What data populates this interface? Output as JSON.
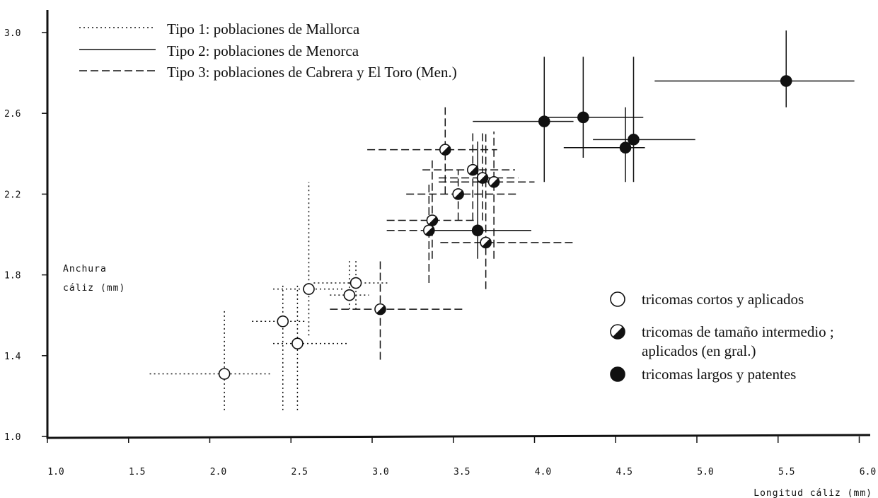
{
  "chart_data": {
    "type": "scatter",
    "title": "",
    "xlabel": "Longitud cáliz (mm)",
    "ylabel_lines": [
      "Anchura",
      "cáliz (mm)"
    ],
    "xlim": [
      1.0,
      6.0
    ],
    "ylim": [
      1.0,
      3.1
    ],
    "x_ticks": [
      "1.0",
      "1.5",
      "2.0",
      "2.5",
      "3.0",
      "3.5",
      "4.0",
      "4.5",
      "5.0",
      "5.5",
      "6.0"
    ],
    "y_ticks": [
      "1.0",
      "1.4",
      "1.8",
      "2.2",
      "2.6",
      "3.0"
    ],
    "grid": false,
    "line_legend": [
      {
        "style": "dotted",
        "label": "Tipo 1: poblaciones de Mallorca"
      },
      {
        "style": "solid",
        "label": "Tipo 2: poblaciones de Menorca"
      },
      {
        "style": "dashed",
        "label": "Tipo 3: poblaciones de Cabrera y El Toro (Men.)"
      }
    ],
    "marker_legend": [
      {
        "marker": "open",
        "lines": [
          "tricomas cortos y aplicados"
        ]
      },
      {
        "marker": "half",
        "lines": [
          "tricomas de tamaño intermedio ;",
          "aplicados (en gral.)"
        ]
      },
      {
        "marker": "filled",
        "lines": [
          "tricomas largos y patentes"
        ]
      }
    ],
    "series": [
      {
        "line": "dotted",
        "marker": "open",
        "points": [
          {
            "x": 2.09,
            "y": 1.31,
            "xerr": [
              1.63,
              2.38
            ],
            "yerr": [
              1.13,
              1.63
            ]
          },
          {
            "x": 2.45,
            "y": 1.57,
            "xerr": [
              2.26,
              2.6
            ],
            "yerr": [
              1.13,
              1.75
            ]
          },
          {
            "x": 2.54,
            "y": 1.46,
            "xerr": [
              2.39,
              2.86
            ],
            "yerr": [
              1.13,
              1.75
            ]
          },
          {
            "x": 2.61,
            "y": 1.73,
            "xerr": [
              2.39,
              2.83
            ],
            "yerr": [
              1.5,
              2.26
            ]
          },
          {
            "x": 2.86,
            "y": 1.7,
            "xerr": [
              2.74,
              2.98
            ],
            "yerr": [
              1.63,
              1.88
            ]
          },
          {
            "x": 2.9,
            "y": 1.76,
            "xerr": [
              2.64,
              3.1
            ],
            "yerr": [
              1.63,
              1.88
            ]
          }
        ]
      },
      {
        "line": "dashed",
        "marker": "half",
        "points": [
          {
            "x": 3.05,
            "y": 1.63,
            "xerr": [
              2.74,
              3.56
            ],
            "yerr": [
              1.38,
              1.88
            ]
          },
          {
            "x": 3.35,
            "y": 2.02,
            "xerr": [
              3.09,
              3.56
            ],
            "yerr": [
              1.76,
              2.26
            ]
          },
          {
            "x": 3.37,
            "y": 2.07,
            "xerr": [
              3.09,
              3.64
            ],
            "yerr": [
              1.88,
              2.38
            ]
          },
          {
            "x": 3.45,
            "y": 2.42,
            "xerr": [
              2.97,
              3.77
            ],
            "yerr": [
              2.2,
              2.63
            ]
          },
          {
            "x": 3.53,
            "y": 2.2,
            "xerr": [
              3.21,
              3.9
            ],
            "yerr": [
              2.07,
              2.32
            ]
          },
          {
            "x": 3.62,
            "y": 2.32,
            "xerr": [
              3.31,
              3.88
            ],
            "yerr": [
              2.07,
              2.51
            ]
          },
          {
            "x": 3.7,
            "y": 1.96,
            "xerr": [
              3.42,
              4.24
            ],
            "yerr": [
              1.73,
              2.51
            ]
          },
          {
            "x": 3.68,
            "y": 2.28,
            "xerr": [
              3.41,
              3.9
            ],
            "yerr": [
              2.07,
              2.51
            ]
          },
          {
            "x": 3.75,
            "y": 2.26,
            "xerr": [
              3.41,
              4.0
            ],
            "yerr": [
              1.88,
              2.51
            ]
          }
        ]
      },
      {
        "line": "solid",
        "marker": "filled",
        "points": [
          {
            "x": 3.65,
            "y": 2.02,
            "xerr": [
              3.4,
              3.98
            ],
            "yerr": [
              1.88,
              2.46
            ]
          },
          {
            "x": 4.06,
            "y": 2.56,
            "xerr": [
              3.62,
              4.24
            ],
            "yerr": [
              2.26,
              2.88
            ]
          },
          {
            "x": 4.3,
            "y": 2.58,
            "xerr": [
              4.07,
              4.67
            ],
            "yerr": [
              2.38,
              2.88
            ]
          },
          {
            "x": 4.56,
            "y": 2.43,
            "xerr": [
              4.18,
              4.68
            ],
            "yerr": [
              2.26,
              2.63
            ]
          },
          {
            "x": 4.61,
            "y": 2.47,
            "xerr": [
              4.36,
              4.99
            ],
            "yerr": [
              2.26,
              2.88
            ]
          },
          {
            "x": 5.55,
            "y": 2.76,
            "xerr": [
              4.74,
              5.97
            ],
            "yerr": [
              2.63,
              3.01
            ]
          }
        ]
      }
    ]
  }
}
